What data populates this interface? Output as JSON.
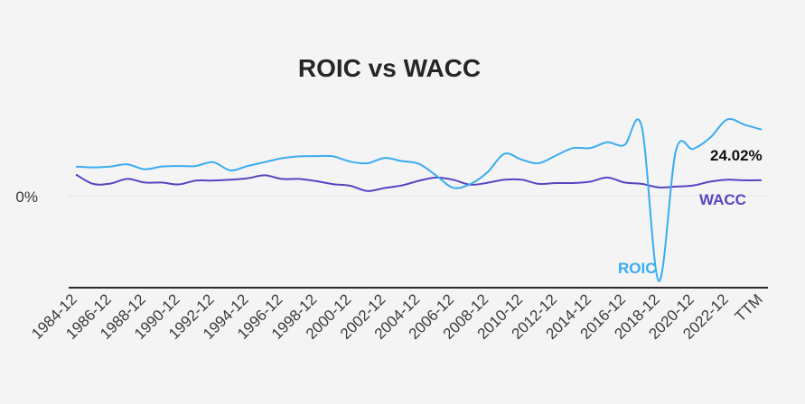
{
  "chart_data": {
    "type": "line",
    "title": "ROIC vs WACC",
    "xlabel": "",
    "ylabel": "",
    "x": [
      "1984-12",
      "1985-12",
      "1986-12",
      "1987-12",
      "1988-12",
      "1989-12",
      "1990-12",
      "1991-12",
      "1992-12",
      "1993-12",
      "1994-12",
      "1995-12",
      "1996-12",
      "1997-12",
      "1998-12",
      "1999-12",
      "2000-12",
      "2001-12",
      "2002-12",
      "2003-12",
      "2004-12",
      "2005-12",
      "2006-12",
      "2007-12",
      "2008-12",
      "2009-12",
      "2010-12",
      "2011-12",
      "2012-12",
      "2013-12",
      "2014-12",
      "2015-12",
      "2016-12",
      "2017-12",
      "2018-12",
      "2019-12",
      "2020-12",
      "2021-12",
      "2022-12",
      "2023-12",
      "TTM"
    ],
    "x_tick_labels": [
      "1984-12",
      "1986-12",
      "1988-12",
      "1990-12",
      "1992-12",
      "1994-12",
      "1996-12",
      "1998-12",
      "2000-12",
      "2002-12",
      "2004-12",
      "2006-12",
      "2008-12",
      "2010-12",
      "2012-12",
      "2014-12",
      "2016-12",
      "2018-12",
      "2020-12",
      "2022-12",
      "TTM"
    ],
    "y_tick_labels": [
      "0%"
    ],
    "ylim": [
      -36,
      30
    ],
    "series": [
      {
        "name": "ROIC",
        "color": "#3aacf0",
        "values": [
          10.6,
          10.3,
          10.6,
          11.4,
          9.6,
          10.6,
          10.8,
          10.8,
          12.2,
          9.2,
          10.8,
          12.2,
          13.6,
          14.3,
          14.4,
          14.3,
          12.4,
          11.8,
          13.7,
          12.6,
          11.6,
          7.4,
          2.9,
          4.2,
          8.5,
          15.2,
          13.1,
          11.8,
          14.6,
          17.3,
          17.3,
          19.4,
          18.4,
          25.2,
          -31.0,
          16.4,
          17.0,
          21.1,
          27.7,
          25.8,
          24.02
        ]
      },
      {
        "name": "WACC",
        "color": "#5645c0",
        "values": [
          7.7,
          4.3,
          4.4,
          6.1,
          4.8,
          4.8,
          4.1,
          5.5,
          5.5,
          5.8,
          6.3,
          7.4,
          6.1,
          6.1,
          5.3,
          4.2,
          3.6,
          1.7,
          2.8,
          3.7,
          5.4,
          6.6,
          5.8,
          4.0,
          4.7,
          5.8,
          5.8,
          4.3,
          4.6,
          4.6,
          5.1,
          6.6,
          4.8,
          4.3,
          3.0,
          3.3,
          3.7,
          5.1,
          5.8,
          5.6,
          5.6
        ]
      }
    ],
    "annotations": {
      "roic_label": "ROIC",
      "wacc_label": "WACC",
      "last_value_label": "24.02%"
    },
    "grid": false,
    "legend": "none"
  }
}
